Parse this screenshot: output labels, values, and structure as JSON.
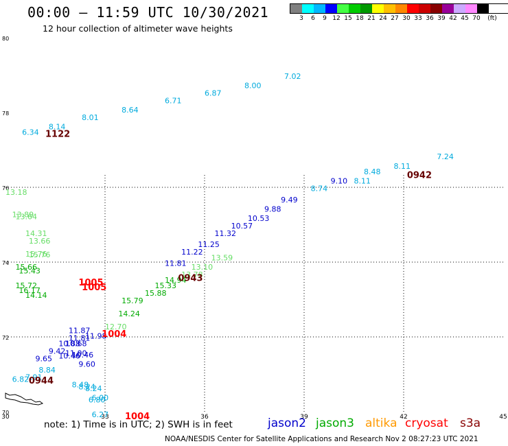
{
  "title": "00:00 – 11:59 UTC 10/30/2021",
  "subtitle": "12 hour collection of altimeter wave heights",
  "legend": {
    "colors": [
      "#808080",
      "#00ffff",
      "#00b8ff",
      "#0000ff",
      "#44ff44",
      "#00cc00",
      "#009900",
      "#ffff00",
      "#ffc000",
      "#ff8800",
      "#ff0000",
      "#cc0000",
      "#880000",
      "#990099",
      "#ccaaff",
      "#ff88ff",
      "#000000"
    ],
    "labels": [
      "3",
      "6",
      "9",
      "12",
      "15",
      "18",
      "21",
      "24",
      "27",
      "30",
      "33",
      "36",
      "39",
      "42",
      "45",
      "70",
      "(ft)"
    ]
  },
  "axes": {
    "lon_labels": [
      "30",
      "33",
      "36",
      "39",
      "42",
      "45"
    ],
    "lat_labels": [
      "80",
      "78",
      "76",
      "74",
      "72",
      "70"
    ]
  },
  "chart_data": {
    "type": "scatter",
    "x_unit": "longitude (deg E)",
    "y_unit": "latitude (deg N)",
    "xlim": [
      30,
      45
    ],
    "ylim": [
      70,
      80
    ],
    "series": [
      {
        "name": "jason2",
        "color": "#0000cc",
        "points": [
          [
            30.9,
            71.35,
            "9.65"
          ],
          [
            31.3,
            71.55,
            "9.42"
          ],
          [
            31.6,
            71.42,
            "10.46"
          ],
          [
            31.8,
            71.5,
            "11.00"
          ],
          [
            32.0,
            71.45,
            "10.46"
          ],
          [
            31.6,
            71.75,
            "10.88"
          ],
          [
            31.8,
            71.75,
            "10.68"
          ],
          [
            31.9,
            71.9,
            "11.81"
          ],
          [
            32.4,
            71.95,
            "11.98"
          ],
          [
            31.9,
            72.1,
            "11.87"
          ],
          [
            32.2,
            71.2,
            "9.60"
          ],
          [
            34.8,
            73.9,
            "11.81"
          ],
          [
            35.3,
            74.2,
            "11.22"
          ],
          [
            35.8,
            74.4,
            "11.25"
          ],
          [
            36.3,
            74.7,
            "11.32"
          ],
          [
            36.8,
            74.9,
            "10.57"
          ],
          [
            37.3,
            75.1,
            "10.53"
          ],
          [
            37.8,
            75.35,
            "9.88"
          ],
          [
            38.3,
            75.6,
            "9.49"
          ],
          [
            39.8,
            76.1,
            "9.10"
          ]
        ]
      },
      {
        "name": "jason3",
        "color": "#00aa00",
        "points": [
          [
            30.3,
            73.3,
            "15.72"
          ],
          [
            30.4,
            73.17,
            "16.17"
          ],
          [
            30.6,
            73.05,
            "14.14"
          ],
          [
            30.4,
            73.7,
            "15.43"
          ],
          [
            30.3,
            73.8,
            "15.66"
          ],
          [
            33.4,
            72.55,
            "14.24"
          ],
          [
            33.5,
            72.9,
            "15.79"
          ],
          [
            34.2,
            73.1,
            "15.88"
          ],
          [
            34.5,
            73.3,
            "15.33"
          ],
          [
            34.8,
            73.45,
            "14.94"
          ]
        ]
      },
      {
        "name": "jason3-light",
        "color": "#66dd66",
        "points": [
          [
            30.0,
            75.8,
            "13.18"
          ],
          [
            30.2,
            75.2,
            "13.89"
          ],
          [
            30.3,
            75.15,
            "13.64"
          ],
          [
            30.6,
            74.7,
            "14.31"
          ],
          [
            30.7,
            74.5,
            "13.66"
          ],
          [
            30.6,
            74.15,
            "15.76"
          ],
          [
            30.7,
            74.13,
            "15.76"
          ],
          [
            33.0,
            72.2,
            "12.70"
          ],
          [
            35.3,
            73.6,
            "13.78"
          ],
          [
            35.6,
            73.8,
            "13.10"
          ],
          [
            36.2,
            74.05,
            "13.59"
          ]
        ]
      },
      {
        "name": "cyan",
        "color": "#00aadd",
        "points": [
          [
            30.5,
            77.4,
            "6.34"
          ],
          [
            31.3,
            77.55,
            "8.14"
          ],
          [
            32.3,
            77.8,
            "8.01"
          ],
          [
            33.5,
            78.0,
            "8.64"
          ],
          [
            34.8,
            78.25,
            "6.71"
          ],
          [
            36.0,
            78.45,
            "6.87"
          ],
          [
            37.2,
            78.65,
            "8.00"
          ],
          [
            38.4,
            78.9,
            "7.02"
          ],
          [
            40.5,
            76.1,
            "8.11"
          ],
          [
            40.8,
            76.35,
            "8.48"
          ],
          [
            41.7,
            76.5,
            "8.11"
          ],
          [
            43.0,
            76.75,
            "7.24"
          ],
          [
            39.2,
            75.9,
            "8.74"
          ],
          [
            31.0,
            71.05,
            "8.84"
          ],
          [
            30.6,
            70.85,
            "7.91"
          ],
          [
            30.2,
            70.8,
            "6.82"
          ],
          [
            32.0,
            70.65,
            "8.48"
          ],
          [
            32.2,
            70.6,
            "8.24"
          ],
          [
            32.4,
            70.55,
            "8.24"
          ],
          [
            32.5,
            70.25,
            "6.80"
          ],
          [
            32.6,
            70.3,
            "6.00"
          ],
          [
            32.6,
            69.85,
            "6.27"
          ]
        ]
      }
    ],
    "track_times": [
      {
        "label": "1122",
        "color": "#660000",
        "lon": 31.2,
        "lat": 77.35
      },
      {
        "label": "0942",
        "color": "#660000",
        "lon": 42.1,
        "lat": 76.25
      },
      {
        "label": "0943",
        "color": "#660000",
        "lon": 35.2,
        "lat": 73.5
      },
      {
        "label": "0944",
        "color": "#660000",
        "lon": 30.7,
        "lat": 70.75
      },
      {
        "label": "1005",
        "color": "#ff0000",
        "lon": 32.2,
        "lat": 73.38
      },
      {
        "label": "1005",
        "color": "#ff0000",
        "lon": 32.3,
        "lat": 73.25
      },
      {
        "label": "1004",
        "color": "#ff0000",
        "lon": 32.9,
        "lat": 72.0
      },
      {
        "label": "1004",
        "color": "#ff0000",
        "lon": 33.6,
        "lat": 69.8
      }
    ]
  },
  "note": "note:  1) Time is in UTC;  2) SWH is in feet",
  "satellites": [
    {
      "name": "jason2",
      "color": "#0000cc"
    },
    {
      "name": "jason3",
      "color": "#00aa00"
    },
    {
      "name": "altika",
      "color": "#ff9900"
    },
    {
      "name": "cryosat",
      "color": "#ff0000"
    },
    {
      "name": "s3a",
      "color": "#880000"
    }
  ],
  "credit": "NOAA/NESDIS Center for Satellite Applications and Research    Nov  2 08:27:23 UTC 2021"
}
